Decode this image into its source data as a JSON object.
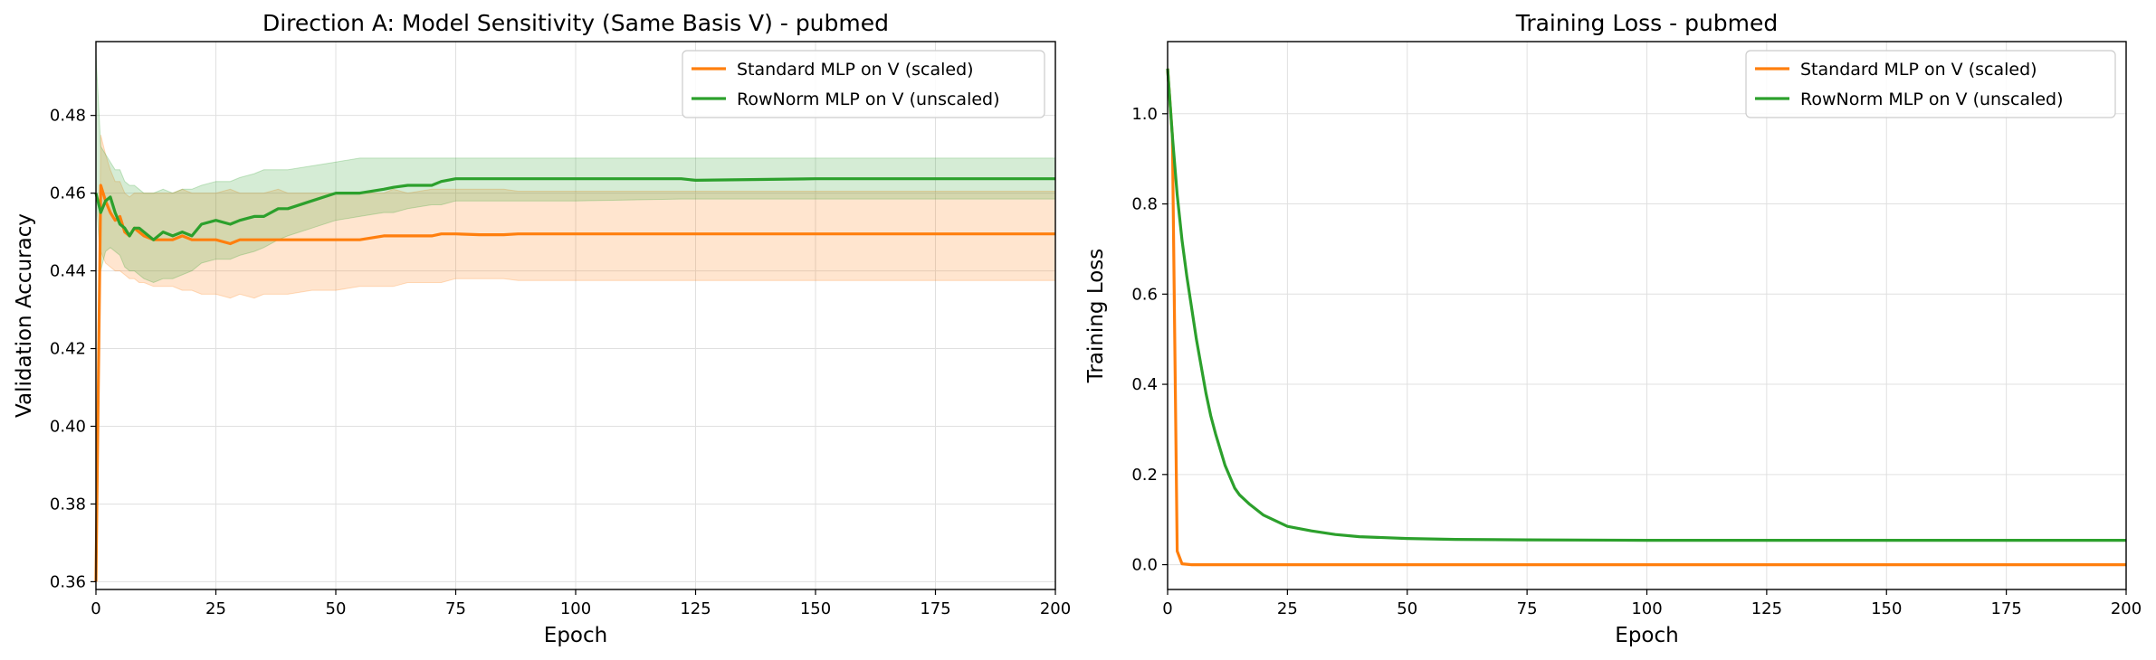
{
  "colors": {
    "standard": "#ff7f0e",
    "rownorm": "#2ca02c",
    "grid": "#e0e0e0"
  },
  "chart_data": [
    {
      "type": "line",
      "title": "Direction A: Model Sensitivity (Same Basis V) - pubmed",
      "xlabel": "Epoch",
      "ylabel": "Validation Accuracy",
      "xlim": [
        0,
        200
      ],
      "ylim": [
        0.358,
        0.499
      ],
      "xticks": [
        0,
        25,
        50,
        75,
        100,
        125,
        150,
        175,
        200
      ],
      "xtick_labels": [
        "0",
        "25",
        "50",
        "75",
        "100",
        "125",
        "150",
        "175",
        "200"
      ],
      "yticks": [
        0.36,
        0.38,
        0.4,
        0.42,
        0.44,
        0.46,
        0.48
      ],
      "ytick_labels": [
        "0.36",
        "0.38",
        "0.40",
        "0.42",
        "0.44",
        "0.46",
        "0.48"
      ],
      "grid": true,
      "legend_position": "top-right",
      "series": [
        {
          "name": "Standard MLP on V (scaled)",
          "color": "#ff7f0e",
          "x": [
            0,
            1,
            2,
            3,
            4,
            5,
            6,
            7,
            8,
            9,
            10,
            12,
            14,
            16,
            18,
            20,
            22,
            25,
            28,
            30,
            33,
            35,
            38,
            40,
            45,
            50,
            55,
            60,
            62,
            65,
            70,
            72,
            75,
            80,
            85,
            88,
            100,
            125,
            150,
            175,
            200
          ],
          "y": [
            0.36,
            0.462,
            0.458,
            0.455,
            0.453,
            0.454,
            0.45,
            0.449,
            0.451,
            0.45,
            0.449,
            0.448,
            0.448,
            0.448,
            0.449,
            0.448,
            0.448,
            0.448,
            0.447,
            0.448,
            0.448,
            0.448,
            0.448,
            0.448,
            0.448,
            0.448,
            0.448,
            0.449,
            0.449,
            0.449,
            0.449,
            0.4495,
            0.4495,
            0.4493,
            0.4493,
            0.4495,
            0.4495,
            0.4495,
            0.4495,
            0.4495,
            0.4495
          ],
          "lower": [
            0.36,
            0.445,
            0.442,
            0.441,
            0.44,
            0.44,
            0.439,
            0.438,
            0.438,
            0.437,
            0.437,
            0.436,
            0.436,
            0.436,
            0.435,
            0.435,
            0.434,
            0.434,
            0.433,
            0.434,
            0.433,
            0.434,
            0.434,
            0.434,
            0.435,
            0.435,
            0.436,
            0.436,
            0.436,
            0.437,
            0.437,
            0.437,
            0.438,
            0.438,
            0.438,
            0.4375,
            0.4375,
            0.4375,
            0.4375,
            0.4375,
            0.4375
          ],
          "upper": [
            0.36,
            0.475,
            0.47,
            0.466,
            0.463,
            0.463,
            0.46,
            0.459,
            0.46,
            0.46,
            0.46,
            0.46,
            0.46,
            0.46,
            0.461,
            0.46,
            0.46,
            0.46,
            0.461,
            0.46,
            0.46,
            0.46,
            0.461,
            0.46,
            0.46,
            0.46,
            0.46,
            0.46,
            0.461,
            0.46,
            0.461,
            0.461,
            0.461,
            0.461,
            0.461,
            0.4605,
            0.4605,
            0.4605,
            0.4605,
            0.4605,
            0.4605
          ]
        },
        {
          "name": "RowNorm MLP on V (unscaled)",
          "color": "#2ca02c",
          "x": [
            0,
            1,
            2,
            3,
            4,
            5,
            6,
            7,
            8,
            9,
            10,
            12,
            14,
            16,
            18,
            20,
            22,
            25,
            28,
            30,
            33,
            35,
            38,
            40,
            45,
            50,
            55,
            60,
            62,
            65,
            70,
            72,
            75,
            80,
            100,
            122,
            125,
            150,
            175,
            200
          ],
          "y": [
            0.46,
            0.455,
            0.458,
            0.459,
            0.455,
            0.452,
            0.451,
            0.449,
            0.451,
            0.451,
            0.45,
            0.448,
            0.45,
            0.449,
            0.45,
            0.449,
            0.452,
            0.453,
            0.452,
            0.453,
            0.454,
            0.454,
            0.456,
            0.456,
            0.458,
            0.46,
            0.46,
            0.461,
            0.4615,
            0.462,
            0.462,
            0.463,
            0.4637,
            0.4637,
            0.4637,
            0.4637,
            0.4633,
            0.4637,
            0.4637,
            0.4637
          ],
          "lower": [
            0.46,
            0.44,
            0.445,
            0.446,
            0.445,
            0.444,
            0.441,
            0.44,
            0.44,
            0.439,
            0.438,
            0.437,
            0.438,
            0.438,
            0.439,
            0.44,
            0.442,
            0.443,
            0.443,
            0.444,
            0.445,
            0.446,
            0.448,
            0.449,
            0.451,
            0.453,
            0.454,
            0.455,
            0.455,
            0.456,
            0.457,
            0.457,
            0.458,
            0.458,
            0.458,
            0.4585,
            0.4585,
            0.4585,
            0.4585,
            0.4585
          ],
          "upper": [
            0.496,
            0.472,
            0.47,
            0.468,
            0.466,
            0.466,
            0.463,
            0.462,
            0.462,
            0.461,
            0.46,
            0.46,
            0.461,
            0.46,
            0.461,
            0.461,
            0.462,
            0.463,
            0.463,
            0.464,
            0.465,
            0.466,
            0.466,
            0.466,
            0.467,
            0.468,
            0.469,
            0.469,
            0.469,
            0.469,
            0.469,
            0.469,
            0.469,
            0.469,
            0.469,
            0.469,
            0.469,
            0.469,
            0.469,
            0.469
          ]
        }
      ]
    },
    {
      "type": "line",
      "title": "Training Loss - pubmed",
      "xlabel": "Epoch",
      "ylabel": "Training Loss",
      "xlim": [
        0,
        200
      ],
      "ylim": [
        -0.055,
        1.16
      ],
      "xticks": [
        0,
        25,
        50,
        75,
        100,
        125,
        150,
        175,
        200
      ],
      "xtick_labels": [
        "0",
        "25",
        "50",
        "75",
        "100",
        "125",
        "150",
        "175",
        "200"
      ],
      "yticks": [
        0.0,
        0.2,
        0.4,
        0.6,
        0.8,
        1.0
      ],
      "ytick_labels": [
        "0.0",
        "0.2",
        "0.4",
        "0.6",
        "0.8",
        "1.0"
      ],
      "grid": true,
      "legend_position": "top-right",
      "series": [
        {
          "name": "Standard MLP on V (scaled)",
          "color": "#ff7f0e",
          "x": [
            0,
            1,
            2,
            3,
            5,
            10,
            50,
            100,
            150,
            200
          ],
          "y": [
            1.1,
            0.95,
            0.03,
            0.002,
            0.0,
            0.0,
            0.0,
            0.0,
            0.0,
            0.0
          ]
        },
        {
          "name": "RowNorm MLP on V (unscaled)",
          "color": "#2ca02c",
          "x": [
            0,
            1,
            2,
            3,
            4,
            5,
            6,
            7,
            8,
            9,
            10,
            12,
            14,
            15,
            17,
            20,
            25,
            30,
            35,
            40,
            50,
            60,
            75,
            100,
            125,
            150,
            175,
            200
          ],
          "y": [
            1.1,
            0.95,
            0.82,
            0.72,
            0.64,
            0.57,
            0.5,
            0.44,
            0.38,
            0.33,
            0.29,
            0.22,
            0.17,
            0.155,
            0.135,
            0.11,
            0.085,
            0.075,
            0.067,
            0.062,
            0.058,
            0.056,
            0.055,
            0.054,
            0.054,
            0.054,
            0.054,
            0.054
          ]
        }
      ]
    }
  ]
}
